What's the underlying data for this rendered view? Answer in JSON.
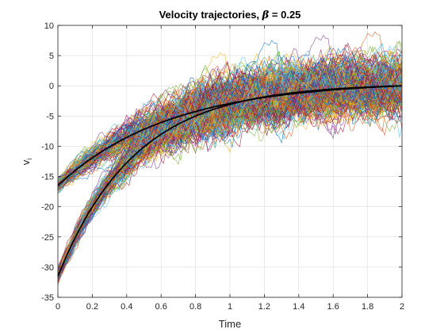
{
  "chart_data": {
    "type": "line",
    "title_prefix": "Velocity trajectories, ",
    "title_symbol": "β",
    "title_suffix": " = 0.25",
    "xlabel": "Time",
    "ylabel_main": "v",
    "ylabel_sub": "i",
    "xlim": [
      0,
      2
    ],
    "ylim": [
      -35,
      10
    ],
    "xticks": [
      "0",
      "0.2",
      "0.4",
      "0.6",
      "0.8",
      "1",
      "1.2",
      "1.4",
      "1.6",
      "1.8",
      "2"
    ],
    "yticks": [
      "-35",
      "-30",
      "-25",
      "-20",
      "-15",
      "-10",
      "-5",
      "0",
      "5",
      "10"
    ],
    "grid": true,
    "bundles": [
      {
        "start": -16.5,
        "end": 0,
        "tau": 0.65,
        "noise_spread": 3.0
      },
      {
        "start": -31.5,
        "end": 0,
        "tau": 0.45,
        "noise_spread": 3.0
      }
    ],
    "mean_line_color": "#000000",
    "colors": [
      "#0072bd",
      "#d95319",
      "#edb120",
      "#7e2f8e",
      "#77ac30",
      "#4dbeee",
      "#a2142f"
    ]
  }
}
